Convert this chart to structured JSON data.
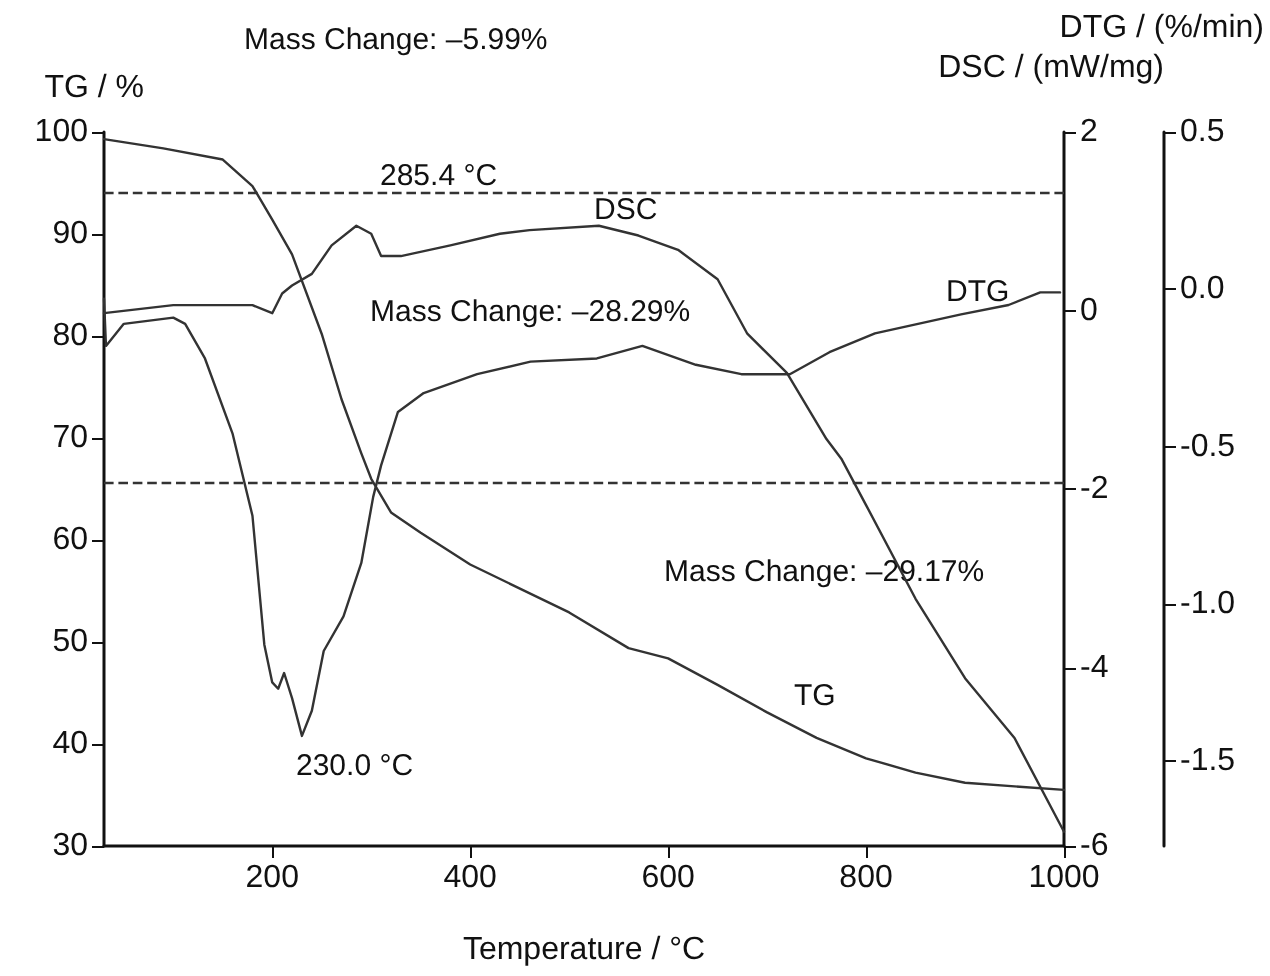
{
  "chart_data": {
    "type": "line",
    "xlabel": "Temperature / °C",
    "ylabel": "TG / %",
    "y2label": "DSC / (mW/mg)",
    "y3label": "DTG / (%/min)",
    "xlim": [
      30,
      1000
    ],
    "xticks": [
      200,
      400,
      600,
      800,
      1000
    ],
    "ylim": [
      30,
      100
    ],
    "yticks": [
      30,
      40,
      50,
      60,
      70,
      80,
      90,
      100
    ],
    "y2lim": [
      -6,
      2
    ],
    "y2ticks": [
      -6,
      -4,
      -2,
      0,
      2
    ],
    "y3lim": [
      -1.77,
      0.5
    ],
    "y3ticks": [
      {
        "value": -1.5,
        "label": "-1.5"
      },
      {
        "value": -1,
        "label": "-1.0"
      },
      {
        "value": -0.5,
        "label": "-0.5"
      },
      {
        "value": 0,
        "label": "0.0"
      },
      {
        "value": 0.5,
        "label": "0.5"
      }
    ],
    "grid": false,
    "marker": "none",
    "line_style": "solid",
    "series": [
      {
        "color": "#333333",
        "x": [
          30,
          90,
          150,
          180,
          200,
          220,
          250,
          270,
          290,
          300,
          320,
          350,
          400,
          500,
          560,
          600,
          650,
          700,
          750,
          800,
          850,
          900,
          1000
        ],
        "values": [
          99.3,
          98.4,
          97.3,
          94.7,
          91.4,
          88,
          80.2,
          73.8,
          68.5,
          66,
          62.7,
          60.7,
          57.6,
          52.9,
          49.4,
          48.4,
          45.8,
          43.1,
          40.6,
          38.6,
          37.2,
          36.2,
          35.5
        ]
      },
      {
        "color": "#333333",
        "axis": "y2",
        "x": [
          30,
          100,
          180,
          200,
          210,
          220,
          240,
          260,
          285,
          300,
          310,
          330,
          380,
          430,
          460,
          530,
          570,
          610,
          650,
          680,
          720,
          760,
          775,
          800,
          850,
          900,
          950,
          1000
        ],
        "values": [
          -0.03,
          0.06,
          0.06,
          -0.03,
          0.19,
          0.28,
          0.41,
          0.73,
          0.95,
          0.86,
          0.61,
          0.61,
          0.73,
          0.86,
          0.9,
          0.95,
          0.84,
          0.68,
          0.35,
          -0.26,
          -0.7,
          -1.44,
          -1.66,
          -2.18,
          -3.23,
          -4.12,
          -4.79,
          -5.84
        ]
      },
      {
        "color": "#333333",
        "axis": "y3",
        "x": [
          30,
          32,
          50,
          100,
          112,
          132,
          160,
          180,
          192,
          200,
          206,
          212,
          220,
          230,
          240,
          252,
          272,
          290,
          302,
          310,
          327,
          353,
          407,
          461,
          528,
          574,
          628,
          674,
          723,
          763,
          809,
          896,
          944,
          976,
          996
        ],
        "values": [
          -0.03,
          -0.18,
          -0.11,
          -0.09,
          -0.11,
          -0.22,
          -0.46,
          -0.72,
          -1.13,
          -1.25,
          -1.27,
          -1.22,
          -1.3,
          -1.42,
          -1.34,
          -1.15,
          -1.04,
          -0.87,
          -0.66,
          -0.56,
          -0.39,
          -0.33,
          -0.27,
          -0.23,
          -0.22,
          -0.18,
          -0.24,
          -0.27,
          -0.27,
          -0.2,
          -0.14,
          -0.08,
          -0.05,
          -0.01,
          -0.01
        ]
      }
    ],
    "ref_lines": [
      {
        "axis": "y",
        "value": 94.01,
        "label": null,
        "line_style": "dashed",
        "color": "#333333"
      },
      {
        "axis": "y",
        "value": 65.72,
        "label": null,
        "line_style": "dashed",
        "color": "#333333"
      }
    ],
    "annotations": [
      "Mass Change: –5.99%",
      "285.4 °C",
      "Mass Change: –28.29%",
      "Mass Change: –29.17%",
      "230.0 °C",
      "DSC",
      "DTG",
      "TG"
    ]
  }
}
